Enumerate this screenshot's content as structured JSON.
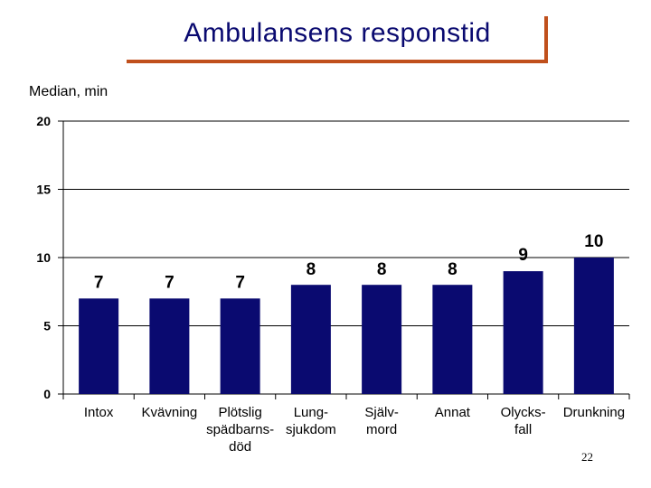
{
  "title": "Ambulansens responstid",
  "page_number": "22",
  "chart_data": {
    "type": "bar",
    "ylabel": "Median, min",
    "ylim": [
      0,
      20
    ],
    "yticks": [
      0,
      5,
      10,
      15,
      20
    ],
    "categories": [
      [
        "Intox"
      ],
      [
        "Kvävning"
      ],
      [
        "Plötslig",
        "spädbarns-",
        "död"
      ],
      [
        "Lung-",
        "sjukdom"
      ],
      [
        "Själv-",
        "mord"
      ],
      [
        "Annat"
      ],
      [
        "Olycks-",
        "fall"
      ],
      [
        "Drunkning"
      ]
    ],
    "values": [
      7,
      7,
      7,
      8,
      8,
      8,
      9,
      10
    ],
    "bar_color": "#0a0a70",
    "grid": true
  }
}
